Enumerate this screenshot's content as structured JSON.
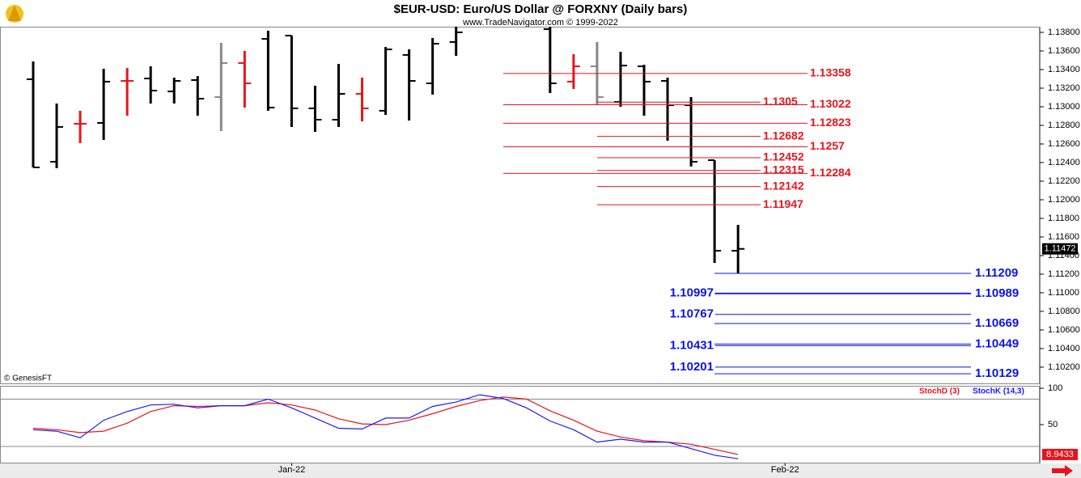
{
  "header": {
    "title": "$EUR-USD:  Euro/US Dollar @ FORXNY  (Daily bars)",
    "subtitle": "www.TradeNavigator.com © 1999-2022",
    "copyright": "© GenesisFT"
  },
  "chart_data": [
    {
      "type": "ohlc",
      "open": [
        1.13296,
        1.12409,
        1.12817,
        1.12826,
        1.13278,
        1.13304,
        1.13165,
        1.13287,
        1.13104,
        1.1347,
        1.1373,
        1.13765,
        1.12983,
        1.12861,
        1.13139,
        1.12957,
        1.13557,
        1.13252,
        1.13696,
        null,
        null,
        null,
        1.13835,
        1.1327,
        1.13435,
        1.13052,
        1.13435,
        1.13278,
        1.13017,
        1.12426,
        1.11452
      ],
      "high": [
        1.13487,
        1.13035,
        1.12957,
        1.13409,
        1.13417,
        1.13435,
        1.13313,
        1.1333,
        1.13687,
        1.136,
        1.13817,
        1.13765,
        1.13226,
        1.13461,
        1.13313,
        1.13643,
        1.13617,
        1.13739,
        1.13887,
        null,
        null,
        null,
        1.13887,
        1.13565,
        1.13696,
        1.13591,
        1.13452,
        1.13313,
        1.13104,
        1.12426,
        1.1173
      ],
      "low": [
        1.12348,
        1.12339,
        1.12609,
        1.12643,
        1.12904,
        1.13035,
        1.13035,
        1.12904,
        1.12739,
        1.12991,
        1.12957,
        1.12783,
        1.1273,
        1.12783,
        1.12843,
        1.12913,
        1.12852,
        1.1313,
        1.13548,
        null,
        null,
        null,
        1.13148,
        1.13191,
        1.13017,
        1.13,
        1.12904,
        1.12635,
        1.12357,
        1.11322,
        1.11209
      ],
      "close": [
        1.12348,
        1.12783,
        1.12817,
        1.1327,
        1.13278,
        1.13174,
        1.13278,
        1.13087,
        1.1347,
        1.13252,
        1.12991,
        1.12983,
        1.12861,
        1.13139,
        1.12983,
        1.13617,
        1.13278,
        1.13678,
        1.138,
        null,
        null,
        null,
        1.13252,
        1.13435,
        1.13104,
        1.13443,
        1.1327,
        1.13017,
        1.12409,
        1.11452,
        1.11472
      ],
      "colors": [
        "#000",
        "#000",
        "#e8141c",
        "#000",
        "#e8141c",
        "#000",
        "#000",
        "#000",
        "#888",
        "#e8141c",
        "#000",
        "#000",
        "#000",
        "#000",
        "#e8141c",
        "#000",
        "#000",
        "#000",
        "#000",
        "#000",
        "#000",
        "#000",
        "#000",
        "#e8141c",
        "#888",
        "#000",
        "#000",
        "#000",
        "#000",
        "#000",
        "#000"
      ],
      "xlim": [
        -1.412,
        42.84
      ],
      "ylim": [
        1.10017,
        1.13861
      ],
      "yticks": [
        {
          "value": 1.102,
          "label": "1.10200"
        },
        {
          "value": 1.104,
          "label": "1.10400"
        },
        {
          "value": 1.106,
          "label": "1.10600"
        },
        {
          "value": 1.108,
          "label": "1.10800"
        },
        {
          "value": 1.11,
          "label": "1.11000"
        },
        {
          "value": 1.112,
          "label": "1.11200"
        },
        {
          "value": 1.114,
          "label": "1.11400"
        },
        {
          "value": 1.116,
          "label": "1.11600"
        },
        {
          "value": 1.118,
          "label": "1.11800"
        },
        {
          "value": 1.12,
          "label": "1.12000"
        },
        {
          "value": 1.122,
          "label": "1.12200"
        },
        {
          "value": 1.124,
          "label": "1.12400"
        },
        {
          "value": 1.126,
          "label": "1.12600"
        },
        {
          "value": 1.128,
          "label": "1.12800"
        },
        {
          "value": 1.13,
          "label": "1.13000"
        },
        {
          "value": 1.132,
          "label": "1.13200"
        },
        {
          "value": 1.134,
          "label": "1.13400"
        },
        {
          "value": 1.136,
          "label": "1.13600"
        },
        {
          "value": 1.138,
          "label": "1.13800"
        }
      ],
      "levels": [
        {
          "value": 1.13358,
          "color": "#e8141c"
        },
        {
          "value": 1.1305,
          "color": "#e8141c"
        },
        {
          "value": 1.13022,
          "color": "#e8141c"
        },
        {
          "value": 1.12823,
          "color": "#e8141c"
        },
        {
          "value": 1.12682,
          "color": "#e8141c"
        },
        {
          "value": 1.1257,
          "color": "#e8141c"
        },
        {
          "value": 1.12452,
          "color": "#e8141c"
        },
        {
          "value": 1.12315,
          "color": "#e8141c"
        },
        {
          "value": 1.12284,
          "color": "#e8141c"
        },
        {
          "value": 1.12142,
          "color": "#e8141c"
        },
        {
          "value": 1.11947,
          "color": "#e8141c"
        },
        {
          "value": 1.11209,
          "color": "#0a14e6"
        },
        {
          "value": 1.10997,
          "color": "#0a14e6"
        },
        {
          "value": 1.10989,
          "color": "#0a14e6"
        },
        {
          "value": 1.10767,
          "color": "#0a14e6"
        },
        {
          "value": 1.10669,
          "color": "#0a14e6"
        },
        {
          "value": 1.10431,
          "color": "#0a14e6"
        },
        {
          "value": 1.10449,
          "color": "#0a14e6"
        },
        {
          "value": 1.10201,
          "color": "#0a14e6"
        },
        {
          "value": 1.10129,
          "color": "#0a14e6"
        }
      ]
    },
    {
      "type": "line",
      "series": [
        {
          "name": "StochD (3)",
          "color": "#e8141c",
          "values": [
            45,
            43,
            39,
            41,
            52,
            68,
            76,
            75,
            76,
            76,
            80,
            77,
            70,
            58,
            51,
            50,
            56,
            65,
            75,
            83,
            88,
            85,
            69,
            56,
            41,
            33,
            28,
            26,
            23,
            16,
            8.9433
          ]
        },
        {
          "name": "StochK (14,3)",
          "color": "#1a1aff",
          "values": [
            43,
            41,
            32,
            56,
            68,
            77,
            78,
            73,
            76,
            76,
            85,
            73,
            59,
            45,
            44,
            59,
            59,
            75,
            81,
            91,
            86,
            73,
            55,
            43,
            26,
            30,
            26,
            26,
            17,
            8,
            3
          ]
        }
      ],
      "xlim": [
        -1.412,
        42.84
      ],
      "ylim": [
        -3.4,
        103.4
      ],
      "yticks": [
        50,
        100
      ],
      "hlines": [
        85,
        20
      ],
      "xticks": [
        {
          "value": 11,
          "label": "Jan-22"
        },
        {
          "value": 32,
          "label": "Feb-22"
        }
      ]
    }
  ]
}
